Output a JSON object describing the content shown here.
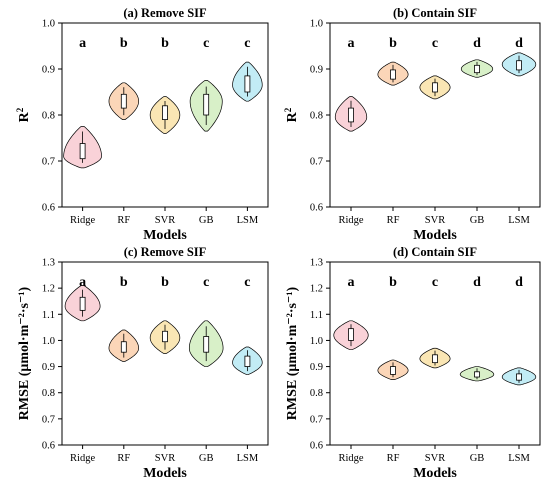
{
  "colors": {
    "Ridge": "#f9d2d8",
    "RF": "#fbd6b8",
    "SVR": "#fae6b4",
    "GB": "#d8f0c8",
    "LSM": "#c2ecf5"
  },
  "chart_data": [
    {
      "type": "violin",
      "title": "(a) Remove SIF",
      "xlabel": "Models",
      "ylabel": "R",
      "ylabel_sup": "2",
      "ylim": [
        0.6,
        1.0
      ],
      "yticks": [
        "0.6",
        "0.7",
        "0.8",
        "0.9",
        "1.0"
      ],
      "categories": [
        "Ridge",
        "RF",
        "SVR",
        "GB",
        "LSM"
      ],
      "letters": [
        "a",
        "b",
        "b",
        "c",
        "c"
      ],
      "series": [
        {
          "min": 0.685,
          "q1": 0.705,
          "median": 0.72,
          "q3": 0.738,
          "max": 0.775,
          "width": 0.92,
          "peak": 0.71
        },
        {
          "min": 0.79,
          "q1": 0.815,
          "median": 0.83,
          "q3": 0.845,
          "max": 0.87,
          "width": 0.72,
          "peak": 0.83
        },
        {
          "min": 0.76,
          "q1": 0.79,
          "median": 0.803,
          "q3": 0.82,
          "max": 0.84,
          "width": 0.72,
          "peak": 0.8
        },
        {
          "min": 0.765,
          "q1": 0.8,
          "median": 0.82,
          "q3": 0.845,
          "max": 0.875,
          "width": 0.78,
          "peak": 0.83
        },
        {
          "min": 0.83,
          "q1": 0.85,
          "median": 0.865,
          "q3": 0.885,
          "max": 0.915,
          "width": 0.72,
          "peak": 0.865
        }
      ]
    },
    {
      "type": "violin",
      "title": "(b) Contain SIF",
      "xlabel": "Models",
      "ylabel": "R",
      "ylabel_sup": "2",
      "ylim": [
        0.6,
        1.0
      ],
      "yticks": [
        "0.6",
        "0.7",
        "0.8",
        "0.9",
        "1.0"
      ],
      "categories": [
        "Ridge",
        "RF",
        "SVR",
        "GB",
        "LSM"
      ],
      "letters": [
        "a",
        "b",
        "c",
        "d",
        "d"
      ],
      "series": [
        {
          "min": 0.765,
          "q1": 0.785,
          "median": 0.8,
          "q3": 0.815,
          "max": 0.84,
          "width": 0.75,
          "peak": 0.795
        },
        {
          "min": 0.865,
          "q1": 0.878,
          "median": 0.888,
          "q3": 0.898,
          "max": 0.915,
          "width": 0.72,
          "peak": 0.888
        },
        {
          "min": 0.835,
          "q1": 0.85,
          "median": 0.86,
          "q3": 0.87,
          "max": 0.885,
          "width": 0.72,
          "peak": 0.86
        },
        {
          "min": 0.882,
          "q1": 0.892,
          "median": 0.9,
          "q3": 0.908,
          "max": 0.92,
          "width": 0.75,
          "peak": 0.9
        },
        {
          "min": 0.885,
          "q1": 0.898,
          "median": 0.908,
          "q3": 0.918,
          "max": 0.935,
          "width": 0.8,
          "peak": 0.91
        }
      ]
    },
    {
      "type": "violin",
      "title": "(c) Remove SIF",
      "xlabel": "Models",
      "ylabel": "RMSE (μmol·m⁻²·s⁻¹)",
      "ylim": [
        0.6,
        1.3
      ],
      "yticks": [
        "0.6",
        "0.7",
        "0.8",
        "0.9",
        "1.0",
        "1.1",
        "1.2",
        "1.3"
      ],
      "categories": [
        "Ridge",
        "RF",
        "SVR",
        "GB",
        "LSM"
      ],
      "letters": [
        "a",
        "b",
        "b",
        "c",
        "c"
      ],
      "series": [
        {
          "min": 1.075,
          "q1": 1.115,
          "median": 1.14,
          "q3": 1.165,
          "max": 1.21,
          "width": 0.85,
          "peak": 1.13
        },
        {
          "min": 0.92,
          "q1": 0.955,
          "median": 0.975,
          "q3": 0.995,
          "max": 1.04,
          "width": 0.72,
          "peak": 0.97
        },
        {
          "min": 0.95,
          "q1": 0.995,
          "median": 1.015,
          "q3": 1.035,
          "max": 1.075,
          "width": 0.72,
          "peak": 1.01
        },
        {
          "min": 0.9,
          "q1": 0.955,
          "median": 0.985,
          "q3": 1.015,
          "max": 1.075,
          "width": 0.82,
          "peak": 0.97
        },
        {
          "min": 0.87,
          "q1": 0.9,
          "median": 0.92,
          "q3": 0.94,
          "max": 0.975,
          "width": 0.72,
          "peak": 0.915
        }
      ]
    },
    {
      "type": "violin",
      "title": "(d) Contain SIF",
      "xlabel": "Models",
      "ylabel": "RMSE (μmol·m⁻²·s⁻¹)",
      "ylim": [
        0.6,
        1.3
      ],
      "yticks": [
        "0.6",
        "0.7",
        "0.8",
        "0.9",
        "1.0",
        "1.1",
        "1.2",
        "1.3"
      ],
      "categories": [
        "Ridge",
        "RF",
        "SVR",
        "GB",
        "LSM"
      ],
      "letters": [
        "a",
        "b",
        "c",
        "d",
        "d"
      ],
      "series": [
        {
          "min": 0.965,
          "q1": 1.0,
          "median": 1.02,
          "q3": 1.045,
          "max": 1.075,
          "width": 0.82,
          "peak": 1.02
        },
        {
          "min": 0.85,
          "q1": 0.87,
          "median": 0.885,
          "q3": 0.9,
          "max": 0.925,
          "width": 0.72,
          "peak": 0.885
        },
        {
          "min": 0.895,
          "q1": 0.915,
          "median": 0.93,
          "q3": 0.945,
          "max": 0.97,
          "width": 0.72,
          "peak": 0.93
        },
        {
          "min": 0.845,
          "q1": 0.86,
          "median": 0.87,
          "q3": 0.88,
          "max": 0.9,
          "width": 0.8,
          "peak": 0.87
        },
        {
          "min": 0.83,
          "q1": 0.848,
          "median": 0.86,
          "q3": 0.872,
          "max": 0.895,
          "width": 0.8,
          "peak": 0.86
        }
      ]
    }
  ]
}
